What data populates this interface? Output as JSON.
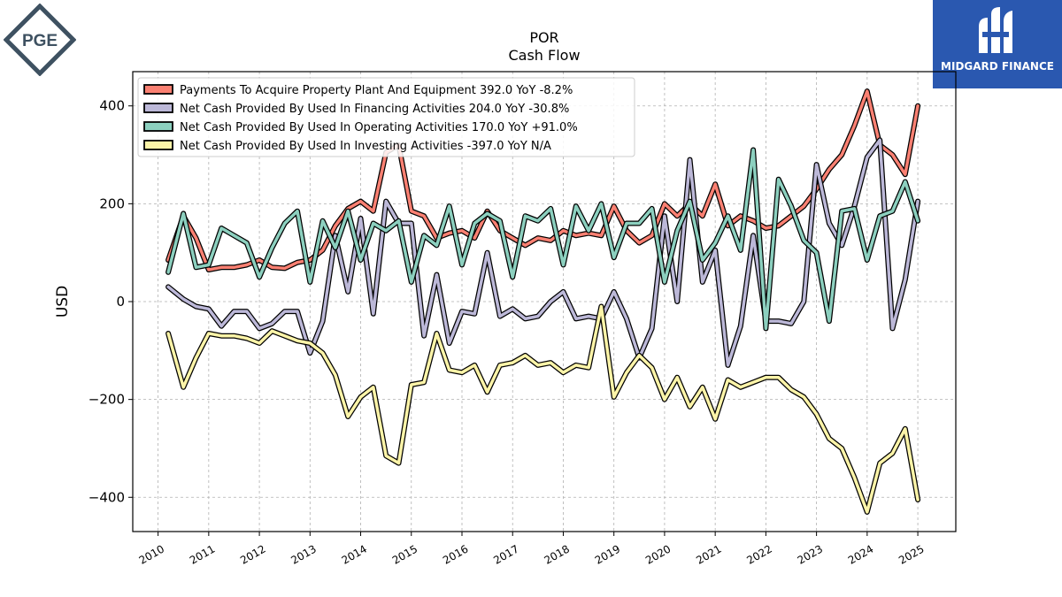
{
  "logos": {
    "left_text": "PGE",
    "right_text": "MIDGARD FINANCE"
  },
  "chart_data": {
    "type": "line",
    "title": "POR",
    "subtitle": "Cash Flow",
    "xlabel": "",
    "ylabel": "USD",
    "ylim": [
      -470,
      470
    ],
    "xlim": [
      2009.5,
      2025.75
    ],
    "x_ticks": [
      2010,
      2011,
      2012,
      2013,
      2014,
      2015,
      2016,
      2017,
      2018,
      2019,
      2020,
      2021,
      2022,
      2023,
      2024,
      2025
    ],
    "y_ticks": [
      -400,
      -200,
      0,
      200,
      400
    ],
    "y_tick_labels": [
      "−400",
      "−200",
      "0",
      "200",
      "400"
    ],
    "grid": true,
    "legend_position": "top-left",
    "x": [
      2010.2,
      2010.5,
      2010.75,
      2011.0,
      2011.25,
      2011.5,
      2011.75,
      2012.0,
      2012.25,
      2012.5,
      2012.75,
      2013.0,
      2013.25,
      2013.5,
      2013.75,
      2014.0,
      2014.25,
      2014.5,
      2014.75,
      2015.0,
      2015.25,
      2015.5,
      2015.75,
      2016.0,
      2016.25,
      2016.5,
      2016.75,
      2017.0,
      2017.25,
      2017.5,
      2017.75,
      2018.0,
      2018.25,
      2018.5,
      2018.75,
      2019.0,
      2019.25,
      2019.5,
      2019.75,
      2020.0,
      2020.25,
      2020.5,
      2020.75,
      2021.0,
      2021.25,
      2021.5,
      2021.75,
      2022.0,
      2022.25,
      2022.5,
      2022.75,
      2023.0,
      2023.25,
      2023.5,
      2023.75,
      2024.0,
      2024.25,
      2024.5,
      2024.75,
      2025.0
    ],
    "series": [
      {
        "name": "Payments To Acquire Property Plant And Equipment",
        "legend_label": "Payments To Acquire Property Plant And Equipment  392.0 YoY -8.2%",
        "color": "#fa8072",
        "values": [
          85,
          175,
          130,
          65,
          70,
          70,
          75,
          85,
          70,
          68,
          80,
          85,
          105,
          155,
          190,
          205,
          185,
          305,
          320,
          185,
          175,
          130,
          140,
          145,
          130,
          185,
          145,
          130,
          115,
          130,
          125,
          145,
          135,
          140,
          135,
          195,
          145,
          120,
          135,
          200,
          175,
          200,
          175,
          240,
          155,
          175,
          165,
          150,
          155,
          175,
          195,
          230,
          270,
          300,
          360,
          430,
          320,
          300,
          260,
          400
        ]
      },
      {
        "name": "Net Cash Provided By Used In Financing Activities",
        "legend_label": "Net Cash Provided By Used In Financing Activities  204.0 YoY -30.8%",
        "color": "#bcb8d8",
        "values": [
          30,
          5,
          -10,
          -15,
          -50,
          -20,
          -20,
          -55,
          -45,
          -20,
          -20,
          -105,
          -40,
          135,
          20,
          170,
          -25,
          205,
          160,
          160,
          -70,
          55,
          -85,
          -20,
          -25,
          100,
          -30,
          -15,
          -35,
          -30,
          0,
          20,
          -35,
          -30,
          -35,
          20,
          -35,
          -115,
          -55,
          175,
          0,
          290,
          40,
          105,
          -130,
          -50,
          135,
          -40,
          -40,
          -45,
          0,
          280,
          160,
          115,
          195,
          295,
          330,
          -55,
          45,
          205
        ]
      },
      {
        "name": "Net Cash Provided By Used In Operating Activities",
        "legend_label": "Net Cash Provided By Used In Operating Activities  170.0 YoY +91.0%",
        "color": "#8cd0bf",
        "values": [
          60,
          180,
          70,
          75,
          150,
          135,
          120,
          50,
          110,
          160,
          185,
          40,
          165,
          110,
          185,
          85,
          160,
          145,
          165,
          40,
          135,
          115,
          195,
          75,
          160,
          180,
          165,
          50,
          175,
          165,
          190,
          75,
          195,
          145,
          200,
          90,
          160,
          160,
          190,
          40,
          145,
          205,
          85,
          120,
          175,
          105,
          310,
          -55,
          250,
          195,
          125,
          100,
          -40,
          185,
          190,
          85,
          175,
          185,
          245,
          165
        ]
      },
      {
        "name": "Net Cash Provided By Used In Investing Activities",
        "legend_label": "Net Cash Provided By Used In Investing Activities  -397.0 YoY N/A",
        "color": "#fcf4a8",
        "values": [
          -65,
          -175,
          -115,
          -65,
          -70,
          -70,
          -75,
          -85,
          -60,
          -70,
          -80,
          -85,
          -105,
          -150,
          -235,
          -195,
          -175,
          -315,
          -330,
          -170,
          -165,
          -65,
          -140,
          -145,
          -130,
          -185,
          -130,
          -125,
          -110,
          -130,
          -125,
          -145,
          -130,
          -135,
          -10,
          -195,
          -145,
          -110,
          -135,
          -200,
          -155,
          -215,
          -175,
          -240,
          -160,
          -175,
          -165,
          -155,
          -155,
          -180,
          -195,
          -230,
          -280,
          -300,
          -360,
          -430,
          -330,
          -310,
          -260,
          -405
        ]
      }
    ]
  }
}
